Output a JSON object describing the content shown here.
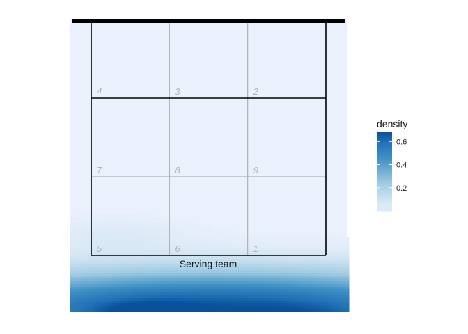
{
  "chart_data": {
    "type": "heatmap",
    "title": "",
    "xlabel": "",
    "ylabel": "",
    "court_label": "Serving team",
    "zones": [
      {
        "label": "4",
        "row": 0,
        "col": 0
      },
      {
        "label": "3",
        "row": 0,
        "col": 1
      },
      {
        "label": "2",
        "row": 0,
        "col": 2
      },
      {
        "label": "7",
        "row": 1,
        "col": 0
      },
      {
        "label": "8",
        "row": 1,
        "col": 1
      },
      {
        "label": "9",
        "row": 1,
        "col": 2
      },
      {
        "label": "5",
        "row": 2,
        "col": 0
      },
      {
        "label": "6",
        "row": 2,
        "col": 1
      },
      {
        "label": "1",
        "row": 2,
        "col": 2
      }
    ],
    "density_blobs": [
      {
        "cx": 0.52,
        "cy": 1.22,
        "sx": 0.95,
        "sy": 0.11,
        "peak": 0.66
      },
      {
        "cx": 0.2,
        "cy": 1.33,
        "sx": 0.16,
        "sy": 0.07,
        "peak": 0.32
      },
      {
        "cx": 0.95,
        "cy": 1.36,
        "sx": 0.22,
        "sy": 0.07,
        "peak": 0.38
      },
      {
        "cx": 0.1,
        "cy": 0.91,
        "sx": 0.22,
        "sy": 0.05,
        "peak": 0.05
      }
    ],
    "legend": {
      "title": "density",
      "min": 0.0,
      "max": 0.68,
      "ticks": [
        0.2,
        0.4,
        0.6
      ],
      "tick_labels": [
        "0.2",
        "0.4",
        "0.6"
      ],
      "position": "right",
      "low_color": "#deebf7",
      "high_color": "#08519c"
    },
    "background_color": "#ebf0fd"
  }
}
